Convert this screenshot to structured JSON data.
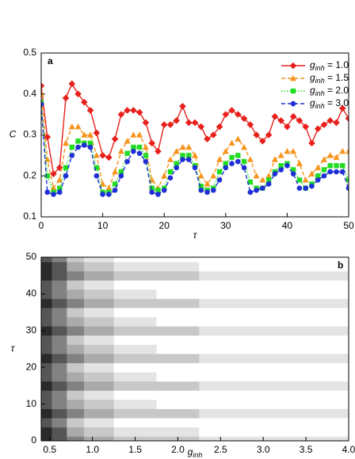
{
  "chart_data": [
    {
      "type": "line",
      "label": "a",
      "xlabel": "τ",
      "ylabel": "C",
      "x": [
        0,
        1,
        2,
        3,
        4,
        5,
        6,
        7,
        8,
        9,
        10,
        11,
        12,
        13,
        14,
        15,
        16,
        17,
        18,
        19,
        20,
        21,
        22,
        23,
        24,
        25,
        26,
        27,
        28,
        29,
        30,
        31,
        32,
        33,
        34,
        35,
        36,
        37,
        38,
        39,
        40,
        41,
        42,
        43,
        44,
        45,
        46,
        47,
        48,
        49,
        50
      ],
      "xlim": [
        0,
        50
      ],
      "xticks": [
        0,
        10,
        20,
        30,
        40,
        50
      ],
      "ylim": [
        0.1,
        0.5
      ],
      "yticks": [
        0.1,
        0.2,
        0.3,
        0.4,
        0.5
      ],
      "legend": "upper right",
      "series": [
        {
          "name": "ginh = 1.0",
          "color": "#e8201c",
          "marker": "diamond",
          "dash": "solid",
          "values": [
            0.42,
            0.295,
            0.205,
            0.22,
            0.39,
            0.425,
            0.4,
            0.38,
            0.36,
            0.305,
            0.25,
            0.245,
            0.29,
            0.35,
            0.36,
            0.36,
            0.355,
            0.33,
            0.28,
            0.26,
            0.325,
            0.325,
            0.335,
            0.37,
            0.33,
            0.33,
            0.32,
            0.29,
            0.3,
            0.32,
            0.35,
            0.36,
            0.35,
            0.34,
            0.325,
            0.3,
            0.285,
            0.3,
            0.345,
            0.335,
            0.32,
            0.345,
            0.335,
            0.32,
            0.28,
            0.315,
            0.325,
            0.335,
            0.33,
            0.365,
            0.34
          ]
        },
        {
          "name": "ginh = 1.5",
          "color": "#f7941d",
          "marker": "triangle",
          "dash": "dashed",
          "values": [
            0.4,
            0.24,
            0.17,
            0.19,
            0.28,
            0.32,
            0.32,
            0.3,
            0.3,
            0.25,
            0.18,
            0.17,
            0.21,
            0.26,
            0.285,
            0.3,
            0.3,
            0.27,
            0.19,
            0.17,
            0.2,
            0.24,
            0.26,
            0.27,
            0.27,
            0.25,
            0.2,
            0.18,
            0.2,
            0.24,
            0.26,
            0.28,
            0.29,
            0.27,
            0.24,
            0.2,
            0.19,
            0.2,
            0.24,
            0.25,
            0.26,
            0.26,
            0.23,
            0.19,
            0.205,
            0.22,
            0.24,
            0.25,
            0.245,
            0.26,
            0.26
          ]
        },
        {
          "name": "ginh = 2.0",
          "color": "#22dd22",
          "marker": "square",
          "dash": "dotted",
          "values": [
            0.38,
            0.2,
            0.16,
            0.17,
            0.22,
            0.27,
            0.285,
            0.28,
            0.28,
            0.22,
            0.16,
            0.16,
            0.18,
            0.21,
            0.255,
            0.27,
            0.27,
            0.25,
            0.17,
            0.165,
            0.17,
            0.21,
            0.23,
            0.25,
            0.25,
            0.225,
            0.175,
            0.165,
            0.17,
            0.21,
            0.23,
            0.245,
            0.25,
            0.235,
            0.185,
            0.17,
            0.17,
            0.19,
            0.21,
            0.225,
            0.23,
            0.215,
            0.19,
            0.17,
            0.18,
            0.2,
            0.215,
            0.225,
            0.225,
            0.225,
            0.19
          ]
        },
        {
          "name": "ginh = 3.0",
          "color": "#1f2fd6",
          "marker": "circle",
          "dash": "dashed",
          "values": [
            0.375,
            0.16,
            0.155,
            0.16,
            0.2,
            0.25,
            0.27,
            0.275,
            0.27,
            0.2,
            0.155,
            0.155,
            0.165,
            0.2,
            0.235,
            0.26,
            0.255,
            0.235,
            0.16,
            0.155,
            0.165,
            0.195,
            0.22,
            0.24,
            0.24,
            0.22,
            0.165,
            0.16,
            0.165,
            0.19,
            0.22,
            0.23,
            0.235,
            0.22,
            0.16,
            0.165,
            0.17,
            0.18,
            0.205,
            0.215,
            0.225,
            0.205,
            0.17,
            0.17,
            0.175,
            0.19,
            0.2,
            0.21,
            0.21,
            0.21,
            0.17
          ]
        }
      ]
    },
    {
      "type": "contour",
      "label": "b",
      "xlabel": "ginh",
      "ylabel": "τ",
      "xlim": [
        0.4,
        4.0
      ],
      "xticks": [
        0.5,
        {
          "value": 1,
          "label": "1.0"
        },
        1.5,
        {
          "value": 2,
          "label": "2.0"
        },
        2.5,
        {
          "value": 3,
          "label": "3.0"
        },
        3.5,
        {
          "value": 4,
          "label": "4.0"
        }
      ],
      "ylim": [
        0,
        50
      ],
      "yticks": [
        0,
        10,
        20,
        30,
        40,
        50
      ],
      "colormap": [
        "#ffffff",
        "#e4e4e4",
        "#c8c8c8",
        "#aaaaaa",
        "#828282",
        "#565656",
        "#2a2a2a"
      ],
      "x": [
        0.45,
        0.6,
        0.8,
        1.0,
        1.5,
        2.0,
        2.5,
        3.0,
        3.5,
        4.0
      ],
      "y": [
        0,
        2.5,
        5,
        7.5,
        10,
        12.5,
        15,
        17.5,
        20,
        22.5,
        25,
        27.5,
        30,
        32.5,
        35,
        37.5,
        40,
        42.5,
        45,
        47.5,
        50
      ],
      "z": [
        [
          6,
          5,
          4,
          3,
          2,
          2,
          1,
          1,
          1,
          1
        ],
        [
          6,
          5,
          3,
          2,
          1,
          1,
          0,
          0,
          0,
          0
        ],
        [
          5,
          4,
          2,
          1,
          0,
          0,
          0,
          0,
          0,
          0
        ],
        [
          6,
          5,
          4,
          3,
          2,
          2,
          1,
          1,
          1,
          1
        ],
        [
          5,
          4,
          3,
          2,
          1,
          0,
          0,
          0,
          0,
          0
        ],
        [
          5,
          4,
          2,
          1,
          0,
          0,
          0,
          0,
          0,
          0
        ],
        [
          6,
          5,
          4,
          3,
          2,
          2,
          1,
          1,
          1,
          1
        ],
        [
          5,
          4,
          3,
          2,
          1,
          0,
          0,
          0,
          0,
          0
        ],
        [
          5,
          4,
          2,
          1,
          0,
          0,
          0,
          0,
          0,
          0
        ],
        [
          6,
          5,
          4,
          3,
          2,
          2,
          1,
          1,
          1,
          1
        ],
        [
          5,
          4,
          3,
          2,
          1,
          0,
          0,
          0,
          0,
          0
        ],
        [
          5,
          4,
          2,
          1,
          0,
          0,
          0,
          0,
          0,
          0
        ],
        [
          6,
          5,
          4,
          3,
          2,
          2,
          1,
          1,
          1,
          1
        ],
        [
          5,
          4,
          3,
          2,
          1,
          0,
          0,
          0,
          0,
          0
        ],
        [
          5,
          4,
          2,
          1,
          0,
          0,
          0,
          0,
          0,
          0
        ],
        [
          6,
          5,
          4,
          3,
          2,
          2,
          1,
          1,
          1,
          1
        ],
        [
          5,
          4,
          3,
          2,
          1,
          0,
          0,
          0,
          0,
          0
        ],
        [
          5,
          4,
          2,
          1,
          0,
          0,
          0,
          0,
          0,
          0
        ],
        [
          6,
          5,
          4,
          3,
          2,
          2,
          1,
          1,
          1,
          1
        ],
        [
          6,
          5,
          3,
          2,
          1,
          1,
          0,
          0,
          0,
          0
        ],
        [
          5,
          4,
          2,
          1,
          0,
          0,
          0,
          0,
          0,
          0
        ]
      ]
    }
  ]
}
